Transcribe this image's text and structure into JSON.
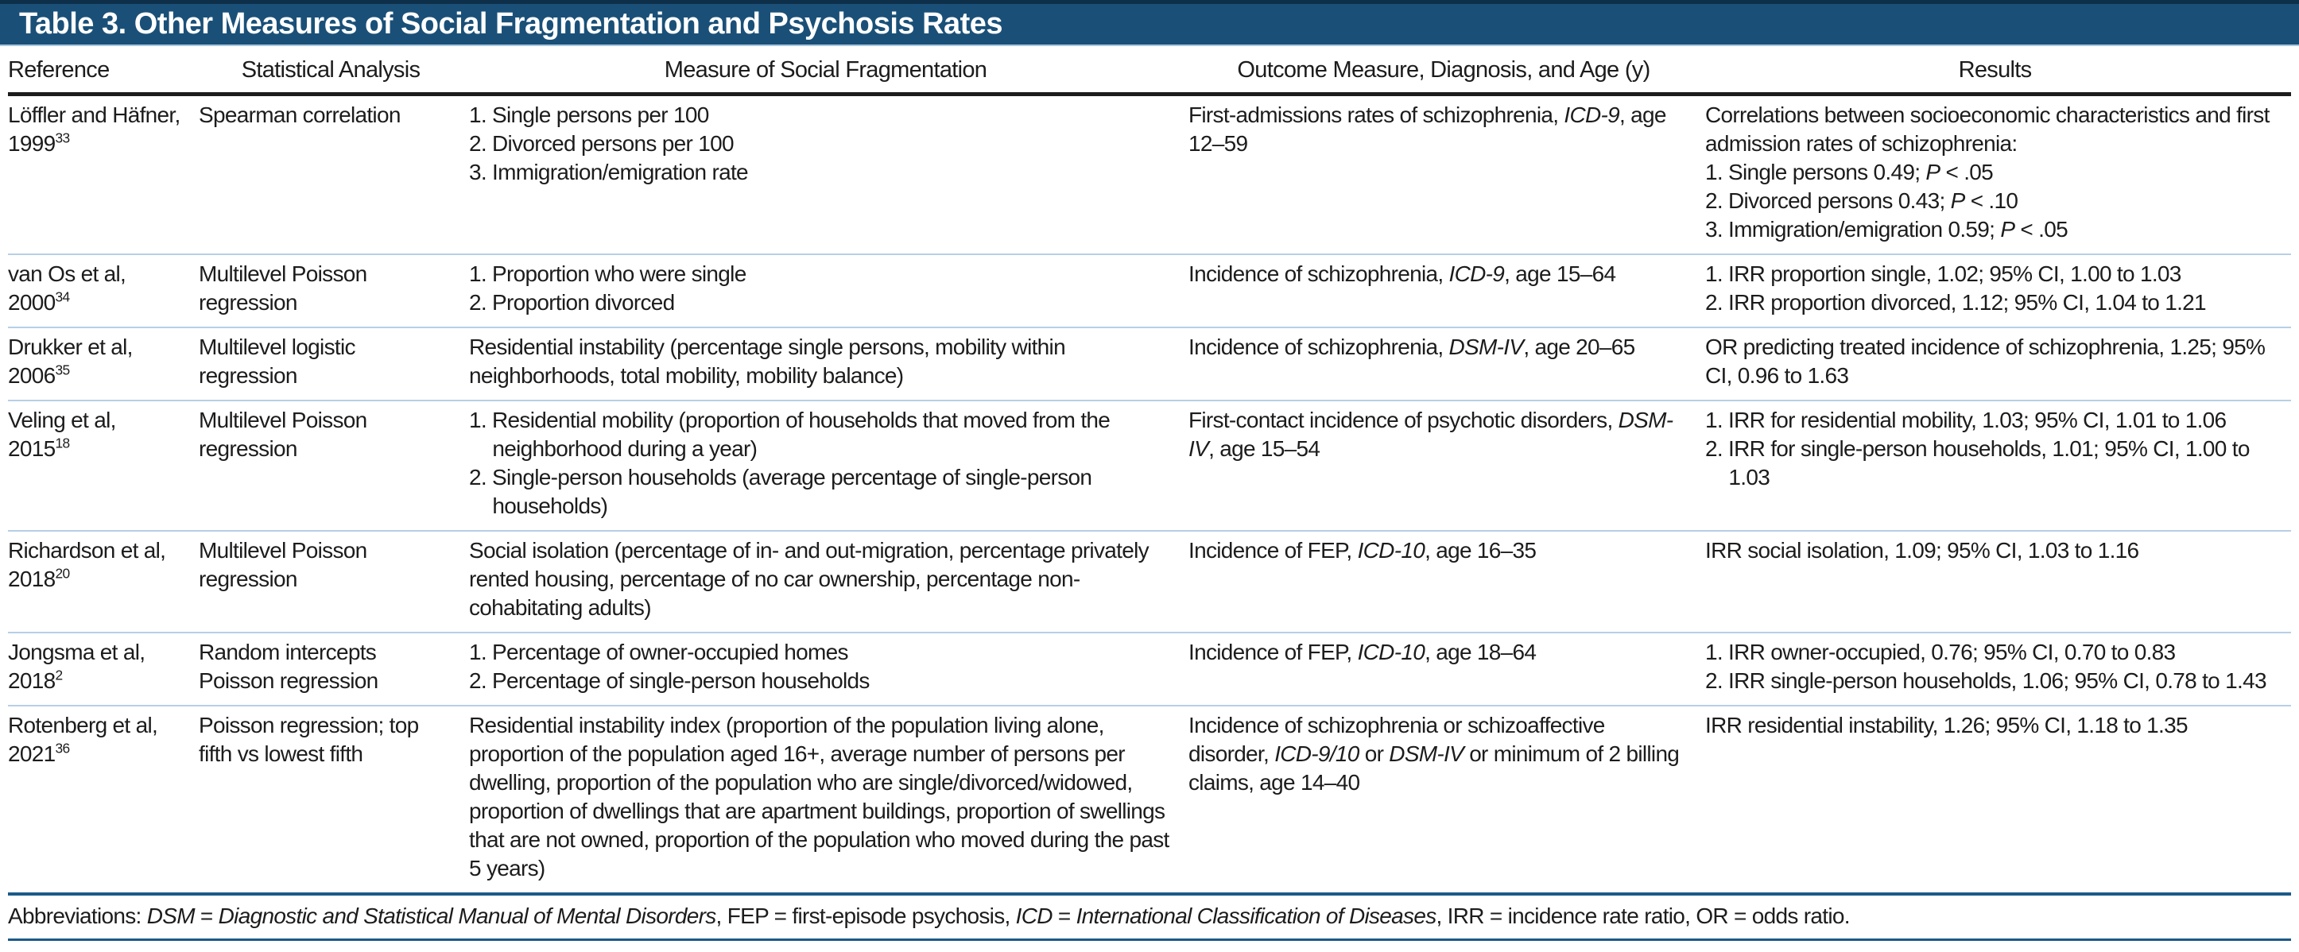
{
  "colors": {
    "title_bar_bg": "#1a5078",
    "title_top_edge": "#0e2f49",
    "title_underline": "#a9c6de",
    "header_rule": "#1c1c1c",
    "row_divider": "#b7cfe6",
    "accent_line": "#1b5a88",
    "text": "#1c1c1c",
    "title_text": "#ffffff"
  },
  "table": {
    "title": "Table 3. Other Measures of Social Fragmentation and Psychosis Rates",
    "columns": [
      "Reference",
      "Statistical Analysis",
      "Measure of Social Fragmentation",
      "Outcome Measure, Diagnosis, and Age (y)",
      "Results"
    ],
    "rows": [
      {
        "reference": "Löffler and Häfner, 1999^{33}",
        "analysis": "Spearman correlation",
        "measure": [
          "1. Single persons per 100",
          "2. Divorced persons per 100",
          "3. Immigration/emigration rate"
        ],
        "outcome": "First-admissions rates of schizophrenia, *ICD-9*, age 12–59",
        "results": [
          "Correlations between socioeconomic characteristics and first admission rates of schizophrenia:",
          "1. Single persons 0.49; *P* < .05",
          "2. Divorced persons 0.43; *P* < .10",
          "3. Immigration/emigration 0.59; *P* < .05"
        ]
      },
      {
        "reference": "van Os et al, 2000^{34}",
        "analysis": "Multilevel Poisson regression",
        "measure": [
          "1. Proportion who were single",
          "2. Proportion divorced"
        ],
        "outcome": "Incidence of schizophrenia, *ICD-9*, age 15–64",
        "results": [
          "1. IRR proportion single, 1.02; 95% CI, 1.00 to 1.03",
          "2. IRR proportion divorced, 1.12; 95% CI, 1.04 to 1.21"
        ]
      },
      {
        "reference": "Drukker et al, 2006^{35}",
        "analysis": "Multilevel logistic regression",
        "measure": [
          "Residential instability (percentage single persons, mobility within neighborhoods, total mobility, mobility balance)"
        ],
        "outcome": "Incidence of schizophrenia, *DSM-IV*, age 20–65",
        "results": [
          "OR predicting treated incidence of schizophrenia, 1.25; 95% CI, 0.96 to 1.63"
        ]
      },
      {
        "reference": "Veling et al, 2015^{18}",
        "analysis": "Multilevel Poisson regression",
        "measure": [
          "1. Residential mobility (proportion of households that moved from the neighborhood during a year)",
          "2. Single-person households (average percentage of single-person households)"
        ],
        "outcome": "First-contact incidence of psychotic disorders, *DSM-IV*, age 15–54",
        "results": [
          "1. IRR for residential mobility, 1.03; 95% CI, 1.01 to 1.06",
          "2. IRR for single-person households, 1.01; 95% CI, 1.00 to 1.03"
        ]
      },
      {
        "reference": "Richardson et al, 2018^{20}",
        "analysis": "Multilevel Poisson regression",
        "measure": [
          "Social isolation (percentage of in- and out-migration, percentage privately rented housing, percentage of no car ownership, percentage non-cohabitating adults)"
        ],
        "outcome": "Incidence of FEP, *ICD-10*, age 16–35",
        "results": [
          "IRR social isolation, 1.09; 95% CI, 1.03 to 1.16"
        ]
      },
      {
        "reference": "Jongsma et al, 2018^{2}",
        "analysis": "Random intercepts Poisson regression",
        "measure": [
          "1. Percentage of owner-occupied homes",
          "2. Percentage of single-person households"
        ],
        "outcome": "Incidence of FEP, *ICD-10*, age 18–64",
        "results": [
          "1. IRR owner-occupied, 0.76; 95% CI, 0.70 to 0.83",
          "2. IRR single-person households, 1.06; 95% CI, 0.78 to 1.43"
        ]
      },
      {
        "reference": "Rotenberg et al, 2021^{36}",
        "analysis": "Poisson regression; top fifth vs lowest fifth",
        "measure": [
          "Residential instability index (proportion of the population living alone, proportion of the population aged 16+, average number of persons per dwelling, proportion of the population who are single/divorced/widowed, proportion of dwellings that are apartment buildings, proportion of swellings that are not owned, proportion of the population who moved during the past 5 years)"
        ],
        "outcome": "Incidence of schizophrenia or schizoaffective disorder, *ICD-9/10* or *DSM-IV* or minimum of 2 billing claims, age 14–40",
        "results": [
          "IRR residential instability, 1.26; 95% CI, 1.18 to 1.35"
        ]
      }
    ],
    "footnote": "Abbreviations: *DSM* = *Diagnostic and Statistical Manual of Mental Disorders*, FEP = first-episode psychosis, *ICD* = *International Classification of Diseases*, IRR = incidence rate ratio, OR = odds ratio."
  }
}
